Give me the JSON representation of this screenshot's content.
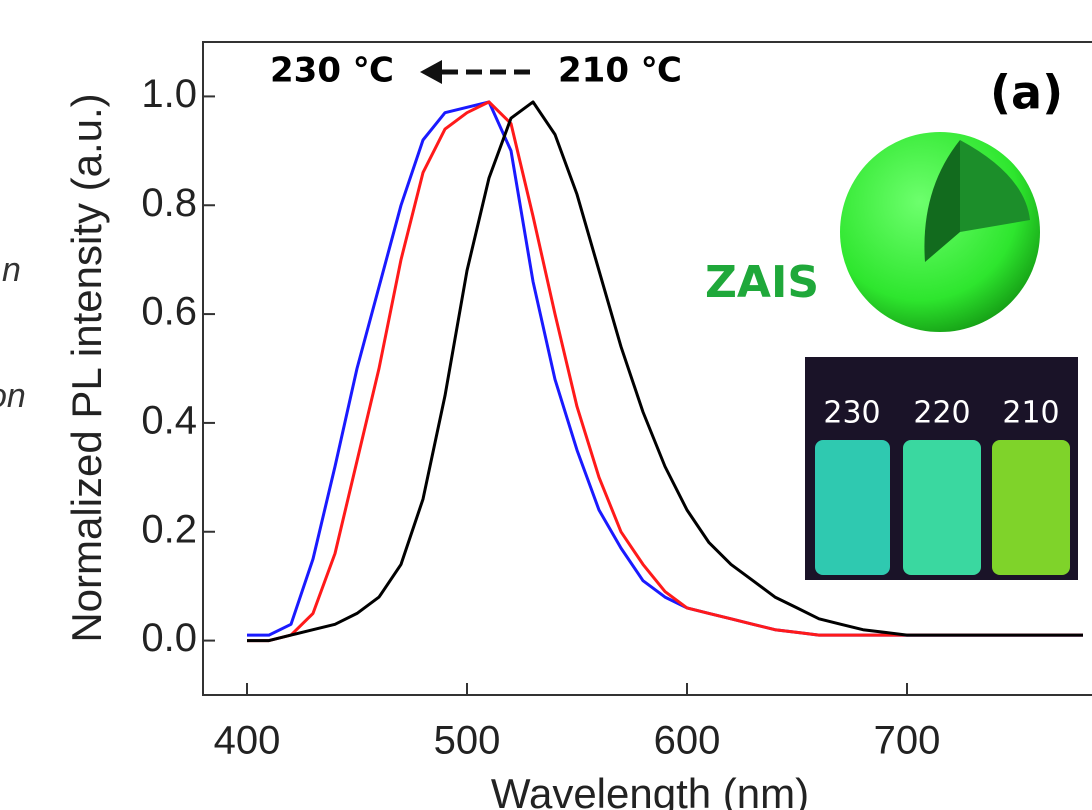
{
  "chart_data": {
    "type": "line",
    "xlabel": "Wavelength (nm)",
    "ylabel": "Normalized PL intensity (a.u.)",
    "x": [
      400,
      410,
      420,
      430,
      440,
      450,
      460,
      470,
      480,
      490,
      500,
      510,
      520,
      530,
      540,
      550,
      560,
      570,
      580,
      590,
      600,
      610,
      620,
      630,
      640,
      650,
      660,
      670,
      680,
      690,
      700,
      710,
      720,
      730,
      740,
      750,
      760,
      770,
      780
    ],
    "series": [
      {
        "name": "230",
        "color": "#1a1aff",
        "values": [
          0.01,
          0.01,
          0.03,
          0.15,
          0.32,
          0.5,
          0.65,
          0.8,
          0.92,
          0.97,
          0.98,
          0.99,
          0.9,
          0.66,
          0.48,
          0.35,
          0.24,
          0.17,
          0.11,
          0.08,
          0.06,
          0.05,
          0.04,
          0.03,
          0.02,
          0.015,
          0.01,
          0.01,
          0.01,
          0.01,
          0.01,
          0.01,
          0.01,
          0.01,
          0.01,
          0.01,
          0.01,
          0.01,
          0.01
        ]
      },
      {
        "name": "220",
        "color": "#ff1a1a",
        "values": [
          0,
          0,
          0.01,
          0.05,
          0.16,
          0.33,
          0.5,
          0.7,
          0.86,
          0.94,
          0.97,
          0.99,
          0.95,
          0.78,
          0.6,
          0.43,
          0.3,
          0.2,
          0.14,
          0.09,
          0.06,
          0.05,
          0.04,
          0.03,
          0.02,
          0.015,
          0.01,
          0.01,
          0.01,
          0.01,
          0.01,
          0.01,
          0.01,
          0.01,
          0.01,
          0.01,
          0.01,
          0.01,
          0.01
        ]
      },
      {
        "name": "210",
        "color": "#000000",
        "values": [
          0,
          0,
          0.01,
          0.02,
          0.03,
          0.05,
          0.08,
          0.14,
          0.26,
          0.45,
          0.68,
          0.85,
          0.96,
          0.99,
          0.93,
          0.82,
          0.68,
          0.54,
          0.42,
          0.32,
          0.24,
          0.18,
          0.14,
          0.11,
          0.08,
          0.06,
          0.04,
          0.03,
          0.02,
          0.015,
          0.01,
          0.01,
          0.01,
          0.01,
          0.01,
          0.01,
          0.01,
          0.01,
          0.01
        ]
      }
    ],
    "xlim": [
      380,
      780
    ],
    "xticks": [
      400,
      500,
      600,
      700
    ],
    "ylim": [
      -0.1,
      1.1
    ],
    "yticks": [
      {
        "value": 0,
        "label": "0.0"
      },
      0.2,
      0.4,
      0.6,
      0.8,
      {
        "value": 1,
        "label": "1.0"
      }
    ],
    "annotations": {
      "left_temp": "230 ℃",
      "right_temp": "210 ℃",
      "panel": "(a)",
      "material": "ZAIS"
    },
    "side_text": [
      "n",
      "on"
    ]
  }
}
